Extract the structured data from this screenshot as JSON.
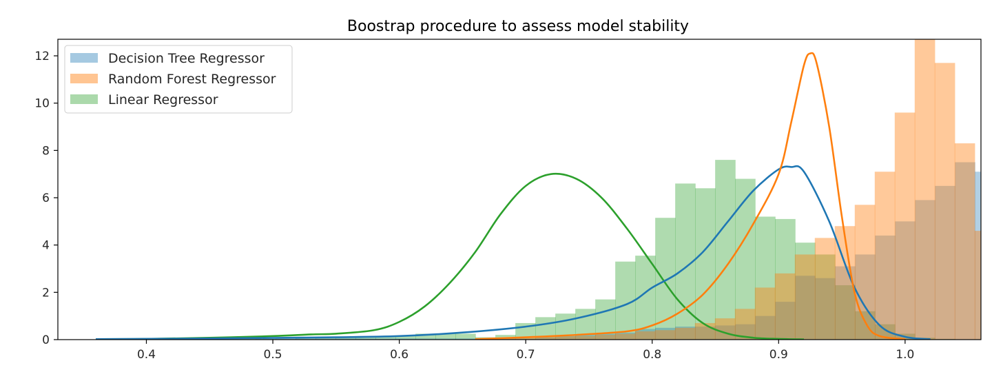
{
  "chart_data": {
    "type": "histogram",
    "title": "Boostrap procedure to assess model stability",
    "xlabel": "",
    "ylabel": "",
    "xlim": [
      0.33,
      1.06
    ],
    "ylim": [
      0,
      12.7
    ],
    "xticks": [
      {
        "value": 0.4,
        "label": "0.4"
      },
      {
        "value": 0.5,
        "label": "0.5"
      },
      {
        "value": 0.6,
        "label": "0.6"
      },
      {
        "value": 0.7,
        "label": "0.7"
      },
      {
        "value": 0.8,
        "label": "0.8"
      },
      {
        "value": 0.9,
        "label": "0.9"
      },
      {
        "value": 1.0,
        "label": "1.0"
      }
    ],
    "yticks": [
      {
        "value": 0,
        "label": "0"
      },
      {
        "value": 2,
        "label": "2"
      },
      {
        "value": 4,
        "label": "4"
      },
      {
        "value": 6,
        "label": "6"
      },
      {
        "value": 8,
        "label": "8"
      },
      {
        "value": 10,
        "label": "10"
      },
      {
        "value": 12,
        "label": "12"
      }
    ],
    "grid": false,
    "legend_position": "top-left",
    "series": [
      {
        "name": "Linear Regressor",
        "color": "#2ca02c",
        "bar_opacity": 0.38,
        "bin_start": 0.36,
        "bin_width": 0.0158,
        "heights": [
          0.03,
          0.03,
          0.03,
          0.03,
          0.03,
          0.03,
          0.03,
          0.03,
          0.03,
          0.03,
          0.05,
          0.06,
          0.08,
          0.1,
          0.13,
          0.15,
          0.25,
          0.25,
          0.25,
          0.1,
          0.2,
          0.7,
          0.95,
          1.1,
          1.3,
          1.7,
          3.3,
          3.55,
          5.15,
          6.6,
          6.4,
          7.6,
          6.8,
          5.2,
          5.1,
          4.1,
          3.6,
          2.3,
          1.2,
          0.65,
          0.25,
          0.08,
          0.03
        ],
        "kde_x": [
          0.36,
          0.4,
          0.45,
          0.5,
          0.53,
          0.55,
          0.58,
          0.6,
          0.62,
          0.64,
          0.66,
          0.68,
          0.7,
          0.72,
          0.74,
          0.76,
          0.78,
          0.8,
          0.82,
          0.84,
          0.86,
          0.88,
          0.9,
          0.92
        ],
        "kde_y": [
          0.02,
          0.03,
          0.08,
          0.15,
          0.22,
          0.25,
          0.4,
          0.75,
          1.4,
          2.4,
          3.7,
          5.3,
          6.5,
          7.0,
          6.8,
          6.0,
          4.7,
          3.2,
          1.7,
          0.7,
          0.25,
          0.08,
          0.03,
          0.01
        ]
      },
      {
        "name": "Decision Tree Regressor",
        "color": "#1f77b4",
        "bar_opacity": 0.35,
        "bin_start": 0.36,
        "bin_width": 0.0158,
        "heights": [
          0.02,
          0.02,
          0.02,
          0.02,
          0.02,
          0.02,
          0.02,
          0.02,
          0.03,
          0.05,
          0.05,
          0.05,
          0.05,
          0.05,
          0.05,
          0.05,
          0.05,
          0.05,
          0.05,
          0.05,
          0.05,
          0.05,
          0.1,
          0.15,
          0.2,
          0.25,
          0.3,
          0.45,
          0.5,
          0.55,
          0.55,
          0.6,
          0.65,
          1.0,
          1.6,
          2.7,
          2.6,
          3.1,
          3.6,
          4.4,
          5.0,
          5.9,
          6.5,
          7.5,
          7.1,
          7.4,
          6.9,
          4.8,
          3.2,
          1.5,
          0.7,
          0.15,
          0.05
        ],
        "kde_x": [
          0.36,
          0.45,
          0.55,
          0.6,
          0.65,
          0.7,
          0.74,
          0.78,
          0.8,
          0.82,
          0.84,
          0.86,
          0.88,
          0.9,
          0.91,
          0.92,
          0.94,
          0.96,
          0.98,
          1.0,
          1.02
        ],
        "kde_y": [
          0.02,
          0.05,
          0.1,
          0.15,
          0.3,
          0.55,
          0.9,
          1.5,
          2.2,
          2.8,
          3.7,
          5.0,
          6.3,
          7.2,
          7.3,
          7.1,
          5.0,
          2.2,
          0.6,
          0.12,
          0.02
        ]
      },
      {
        "name": "Random Forest Regressor",
        "color": "#ff7f0e",
        "bar_opacity": 0.42,
        "bin_start": 0.66,
        "bin_width": 0.0158,
        "heights": [
          0.02,
          0.05,
          0.1,
          0.12,
          0.14,
          0.15,
          0.2,
          0.25,
          0.35,
          0.4,
          0.5,
          0.7,
          0.9,
          1.3,
          2.2,
          2.8,
          3.6,
          4.3,
          4.8,
          5.7,
          7.1,
          9.6,
          12.7,
          11.7,
          8.3,
          4.6,
          1.6,
          0.5
        ],
        "kde_x": [
          0.66,
          0.7,
          0.74,
          0.78,
          0.8,
          0.82,
          0.84,
          0.86,
          0.88,
          0.9,
          0.91,
          0.92,
          0.925,
          0.93,
          0.94,
          0.95,
          0.96,
          0.97,
          0.98,
          1.0
        ],
        "kde_y": [
          0.02,
          0.1,
          0.2,
          0.35,
          0.6,
          1.1,
          1.9,
          3.2,
          4.9,
          7.0,
          9.2,
          11.6,
          12.1,
          11.7,
          9.0,
          5.2,
          2.0,
          0.6,
          0.15,
          0.02
        ]
      }
    ]
  },
  "legend": {
    "items": [
      {
        "label": "Decision Tree Regressor",
        "color": "#1f77b4",
        "opacity": 0.4
      },
      {
        "label": "Random Forest Regressor",
        "color": "#ff7f0e",
        "opacity": 0.45
      },
      {
        "label": "Linear Regressor",
        "color": "#2ca02c",
        "opacity": 0.4
      }
    ]
  }
}
